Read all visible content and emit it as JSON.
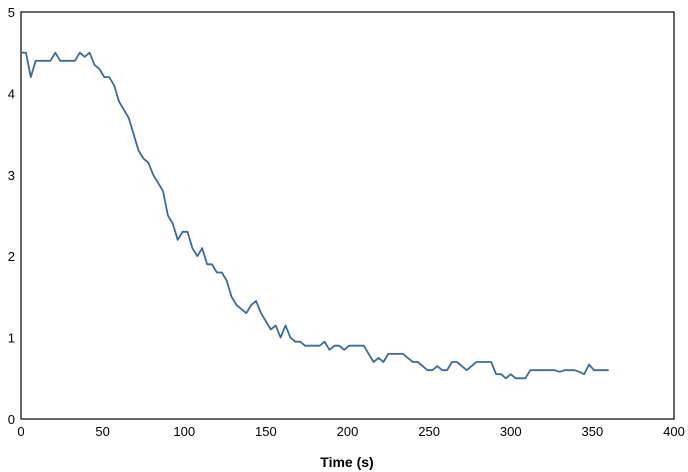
{
  "chart_data": {
    "type": "line",
    "title": "",
    "xlabel": "Time (s)",
    "ylabel": "",
    "xlim": [
      0,
      400
    ],
    "ylim": [
      0,
      5
    ],
    "x_ticks": [
      0,
      50,
      100,
      150,
      200,
      250,
      300,
      350,
      400
    ],
    "y_ticks": [
      0,
      1,
      2,
      3,
      4,
      5
    ],
    "grid": false,
    "legend": "none",
    "colors": {
      "series": "#3a6aa5",
      "frame": "#000000"
    },
    "series": [
      {
        "x": [
          0,
          3,
          6,
          9,
          12,
          15,
          18,
          21,
          24,
          27,
          30,
          33,
          36,
          39,
          42,
          45,
          48,
          51,
          54,
          57,
          60,
          63,
          66,
          69,
          72,
          75,
          78,
          81,
          84,
          87,
          90,
          93,
          96,
          99,
          102,
          105,
          108,
          111,
          114,
          117,
          120,
          123,
          126,
          129,
          132,
          135,
          138,
          141,
          144,
          147,
          150,
          153,
          156,
          159,
          162,
          165,
          168,
          171,
          174,
          177,
          180,
          183,
          186,
          189,
          192,
          195,
          198,
          201,
          204,
          207,
          210,
          213,
          216,
          219,
          222,
          225,
          228,
          231,
          234,
          237,
          240,
          243,
          246,
          249,
          252,
          255,
          258,
          261,
          264,
          267,
          270,
          273,
          276,
          279,
          282,
          285,
          288,
          291,
          294,
          297,
          300,
          303,
          306,
          309,
          312,
          315,
          318,
          321,
          324,
          327,
          330,
          333,
          336,
          339,
          342,
          345,
          348,
          351,
          354,
          357,
          360
        ],
        "y": [
          4.5,
          4.5,
          4.2,
          4.4,
          4.4,
          4.4,
          4.4,
          4.5,
          4.4,
          4.4,
          4.4,
          4.4,
          4.5,
          4.45,
          4.5,
          4.35,
          4.3,
          4.2,
          4.2,
          4.1,
          3.9,
          3.8,
          3.7,
          3.5,
          3.3,
          3.2,
          3.15,
          3.0,
          2.9,
          2.8,
          2.5,
          2.4,
          2.2,
          2.3,
          2.3,
          2.1,
          2.0,
          2.1,
          1.9,
          1.9,
          1.8,
          1.8,
          1.7,
          1.5,
          1.4,
          1.35,
          1.3,
          1.4,
          1.45,
          1.3,
          1.2,
          1.1,
          1.15,
          1.0,
          1.15,
          1.0,
          0.95,
          0.95,
          0.9,
          0.9,
          0.9,
          0.9,
          0.95,
          0.85,
          0.9,
          0.9,
          0.85,
          0.9,
          0.9,
          0.9,
          0.9,
          0.8,
          0.7,
          0.75,
          0.7,
          0.8,
          0.8,
          0.8,
          0.8,
          0.75,
          0.7,
          0.7,
          0.65,
          0.6,
          0.6,
          0.65,
          0.6,
          0.6,
          0.7,
          0.7,
          0.65,
          0.6,
          0.65,
          0.7,
          0.7,
          0.7,
          0.7,
          0.55,
          0.55,
          0.5,
          0.55,
          0.5,
          0.5,
          0.5,
          0.6,
          0.6,
          0.6,
          0.6,
          0.6,
          0.6,
          0.58,
          0.6,
          0.6,
          0.6,
          0.58,
          0.55,
          0.67,
          0.6,
          0.6,
          0.6,
          0.6
        ]
      }
    ]
  }
}
